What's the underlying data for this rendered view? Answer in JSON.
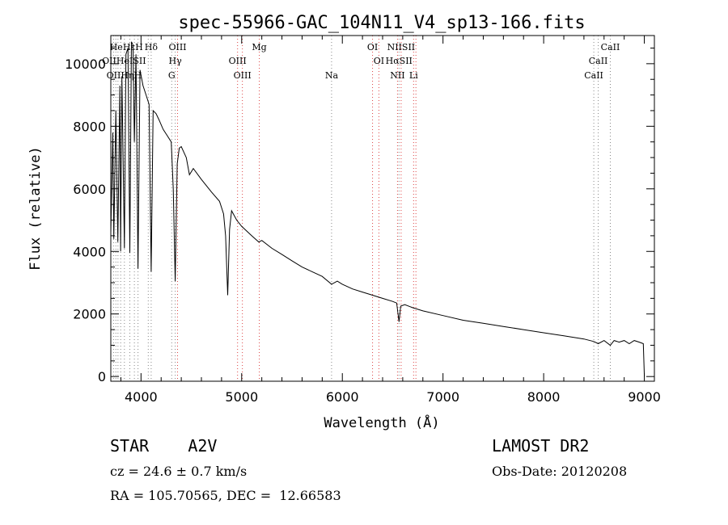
{
  "chart_data": {
    "type": "line",
    "title": "spec-55966-GAC_104N11_V4_sp13-166.fits",
    "xlabel": "Wavelength (Å)",
    "ylabel": "Flux (relative)",
    "xlim": [
      3700,
      9100
    ],
    "ylim": [
      -150,
      10900
    ],
    "x_ticks": [
      4000,
      5000,
      6000,
      7000,
      8000,
      9000
    ],
    "x_tick_labels": [
      "4000",
      "5000",
      "6000",
      "7000",
      "8000",
      "9000"
    ],
    "y_ticks": [
      0,
      2000,
      4000,
      6000,
      8000,
      10000
    ],
    "y_tick_labels": [
      "0",
      "2000",
      "4000",
      "6000",
      "8000",
      "10000"
    ],
    "grid": false,
    "series": [
      {
        "name": "spectrum",
        "color": "#000000",
        "x": [
          3700,
          3720,
          3730,
          3750,
          3770,
          3790,
          3797,
          3810,
          3835,
          3850,
          3870,
          3889,
          3905,
          3920,
          3934,
          3950,
          3970,
          3990,
          4020,
          4050,
          4080,
          4101,
          4120,
          4150,
          4180,
          4220,
          4260,
          4300,
          4320,
          4340,
          4360,
          4380,
          4400,
          4450,
          4481,
          4520,
          4600,
          4700,
          4780,
          4820,
          4840,
          4861,
          4880,
          4900,
          4950,
          5000,
          5100,
          5170,
          5200,
          5300,
          5400,
          5500,
          5600,
          5700,
          5800,
          5893,
          5950,
          6000,
          6100,
          6200,
          6300,
          6400,
          6500,
          6540,
          6563,
          6580,
          6620,
          6700,
          6800,
          7000,
          7200,
          7400,
          7600,
          7800,
          8000,
          8200,
          8400,
          8498,
          8542,
          8600,
          8662,
          8700,
          8750,
          8800,
          8850,
          8900,
          8950,
          8990,
          9000
        ],
        "values": [
          4600,
          7800,
          4400,
          8500,
          4300,
          9300,
          4000,
          9600,
          4100,
          10300,
          10500,
          3950,
          10700,
          10600,
          7500,
          10300,
          3450,
          9800,
          9300,
          9000,
          8700,
          3350,
          8500,
          8400,
          8200,
          7900,
          7700,
          7500,
          6000,
          3050,
          6800,
          7300,
          7350,
          7000,
          6450,
          6650,
          6300,
          5900,
          5600,
          5200,
          4500,
          2600,
          4700,
          5300,
          5000,
          4800,
          4500,
          4300,
          4350,
          4100,
          3900,
          3700,
          3500,
          3350,
          3200,
          2950,
          3050,
          2950,
          2800,
          2700,
          2600,
          2500,
          2400,
          2350,
          1750,
          2250,
          2300,
          2200,
          2100,
          1950,
          1800,
          1700,
          1600,
          1500,
          1400,
          1300,
          1200,
          1120,
          1050,
          1150,
          1000,
          1150,
          1100,
          1150,
          1050,
          1150,
          1100,
          1050,
          0
        ]
      }
    ],
    "line_markers": [
      {
        "name": "Hδ",
        "wavelength": 4101,
        "row": 1
      },
      {
        "name": "OIII",
        "wavelength": 4363,
        "row": 1
      },
      {
        "name": "Mg",
        "wavelength": 5175,
        "row": 1
      },
      {
        "name": "OI",
        "wavelength": 6300,
        "row": 1
      },
      {
        "name": "NIISII",
        "wavelength": 6584,
        "row": 1
      },
      {
        "name": "CaII",
        "wavelength": 8662,
        "row": 1
      },
      {
        "name": "Hγ",
        "wavelength": 4340,
        "row": 2
      },
      {
        "name": "OIII",
        "wavelength": 4959,
        "row": 2
      },
      {
        "name": "OI",
        "wavelength": 6363,
        "row": 2
      },
      {
        "name": "HαSII",
        "wavelength": 6563,
        "row": 2
      },
      {
        "name": "CaII",
        "wavelength": 8542,
        "row": 2
      },
      {
        "name": "G",
        "wavelength": 4305,
        "row": 3
      },
      {
        "name": "OIII",
        "wavelength": 5007,
        "row": 3
      },
      {
        "name": "Na",
        "wavelength": 5893,
        "row": 3
      },
      {
        "name": "NII",
        "wavelength": 6548,
        "row": 3
      },
      {
        "name": "Li",
        "wavelength": 6708,
        "row": 3
      },
      {
        "name": "CaII",
        "wavelength": 8498,
        "row": 3
      },
      {
        "name": "HeHεH",
        "wavelength": 3750,
        "row": 1
      },
      {
        "name": "OIIHeISII",
        "wavelength": 3727,
        "row": 2
      },
      {
        "name": "OIIHηH",
        "wavelength": 3727,
        "row": 3
      }
    ],
    "marker_lines_wavelengths": [
      3727,
      3750,
      3771,
      3798,
      3835,
      3889,
      3934,
      3970,
      4072,
      4101,
      4305,
      4340,
      4363,
      4959,
      5007,
      5175,
      5893,
      6300,
      6363,
      6548,
      6563,
      6584,
      6708,
      6731,
      8498,
      8542,
      8662
    ],
    "marker_line_colors": {
      "balmer": "#888888",
      "forbidden": "#dd4444"
    }
  },
  "footer": {
    "object_class": "STAR    A2V",
    "survey": "LAMOST DR2",
    "cz": "cz = 24.6 ± 0.7 km/s",
    "obs_date": "Obs-Date: 20120208",
    "radec": "RA = 105.70565, DEC =  12.66583"
  }
}
